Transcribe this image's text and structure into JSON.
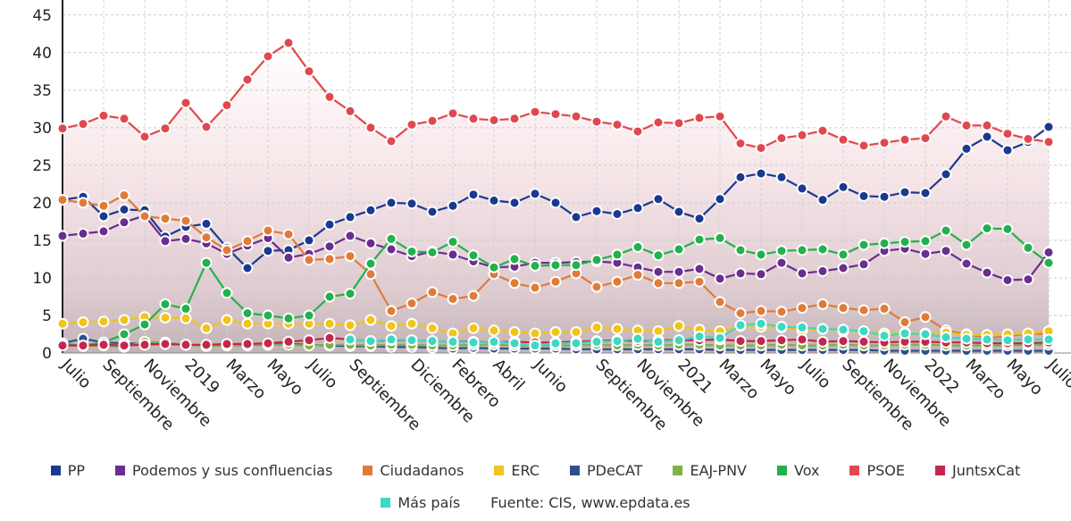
{
  "chart_data": {
    "type": "line",
    "title": "",
    "xlabel": "",
    "ylabel": "",
    "ylim": [
      0,
      47
    ],
    "yticks": [
      0,
      5,
      10,
      15,
      20,
      25,
      30,
      35,
      40,
      45
    ],
    "grid": true,
    "legend_position": "bottom",
    "x_tick_labels": [
      "Julio",
      "Septiembre",
      "Noviembre",
      "2019",
      "Marzo",
      "Mayo",
      "Julio",
      "Septiembre",
      "Diciembre",
      "Febrero",
      "Abril",
      "Junio",
      "Septiembre",
      "Noviembre",
      "2021",
      "Marzo",
      "Mayo",
      "Julio",
      "Septiembre",
      "Noviembre",
      "2022",
      "Marzo",
      "Mayo",
      "Julio"
    ],
    "x_tick_positions": [
      0,
      2,
      4,
      6,
      8,
      10,
      12,
      14,
      17,
      19,
      21,
      23,
      26,
      28,
      30,
      32,
      34,
      36,
      38,
      40,
      42,
      44,
      46,
      48
    ],
    "n_points": 49,
    "series": [
      {
        "name": "PP",
        "color": "#1a3a8f",
        "values": [
          20.4,
          20.8,
          18.2,
          19.1,
          19.0,
          15.5,
          16.8,
          17.2,
          14.0,
          11.3,
          13.6,
          13.7,
          15.0,
          17.1,
          18.1,
          19.0,
          20.0,
          19.9,
          18.8,
          19.6,
          21.1,
          20.3,
          20.0,
          21.2,
          20.0,
          18.1,
          18.9,
          18.5,
          19.3,
          20.5,
          18.8,
          17.9,
          20.5,
          23.4,
          23.9,
          23.4,
          21.9,
          20.4,
          22.1,
          20.9,
          20.8,
          21.4,
          21.3,
          23.8,
          27.2,
          28.8,
          27.0,
          28.1,
          30.1
        ]
      },
      {
        "name": "Podemos y sus confluencias",
        "color": "#6b2d8f",
        "values": [
          15.6,
          15.9,
          16.2,
          17.4,
          18.3,
          14.9,
          15.2,
          14.6,
          13.2,
          14.3,
          15.3,
          12.7,
          13.2,
          14.2,
          15.6,
          14.6,
          13.8,
          12.9,
          13.5,
          13.1,
          12.2,
          11.4,
          11.5,
          12.0,
          12.0,
          12.1,
          12.2,
          12.0,
          11.4,
          10.8,
          10.8,
          11.2,
          9.9,
          10.6,
          10.5,
          12.0,
          10.6,
          10.9,
          11.3,
          11.8,
          13.6,
          13.9,
          13.2,
          13.6,
          11.9,
          10.7,
          9.7,
          9.8,
          13.4
        ]
      },
      {
        "name": "Ciudadanos",
        "color": "#e07b39",
        "values": [
          20.4,
          20.0,
          19.6,
          21.0,
          18.2,
          17.9,
          17.6,
          15.4,
          13.7,
          14.9,
          16.3,
          15.8,
          12.4,
          12.5,
          12.9,
          10.5,
          5.6,
          6.6,
          8.1,
          7.2,
          7.6,
          10.5,
          9.3,
          8.7,
          9.5,
          10.6,
          8.8,
          9.5,
          10.4,
          9.3,
          9.3,
          9.5,
          6.8,
          5.3,
          5.6,
          5.5,
          6.0,
          6.5,
          6.0,
          5.7,
          5.9,
          4.1,
          4.8,
          3.0,
          2.5,
          2.0,
          2.2,
          2.6,
          2.5
        ]
      },
      {
        "name": "ERC",
        "color": "#f0c419",
        "values": [
          3.9,
          4.1,
          4.2,
          4.4,
          4.8,
          4.7,
          4.6,
          3.3,
          4.4,
          3.9,
          3.9,
          3.9,
          3.9,
          3.9,
          3.7,
          4.4,
          3.6,
          3.9,
          3.3,
          2.6,
          3.3,
          3.0,
          2.8,
          2.6,
          2.8,
          2.8,
          3.4,
          3.2,
          3.0,
          2.9,
          3.6,
          3.1,
          2.9,
          3.6,
          3.5,
          3.4,
          3.0,
          3.2,
          2.9,
          2.9,
          2.6,
          2.7,
          2.6,
          2.7,
          2.4,
          2.4,
          2.5,
          2.6,
          2.9
        ]
      },
      {
        "name": "PDeCAT",
        "color": "#2e4f8f",
        "values": [
          1.3,
          1.9,
          1.4,
          1.3,
          1.2,
          1.2,
          1.1,
          1.0,
          1.2,
          1.1,
          1.1,
          1.2,
          1.1,
          1.0,
          0.9,
          0.9,
          0.8,
          0.8,
          0.7,
          0.6,
          0.7,
          0.6,
          0.6,
          0.6,
          0.6,
          0.5,
          0.5,
          0.5,
          0.5,
          0.5,
          0.5,
          0.5,
          0.4,
          0.4,
          0.4,
          0.4,
          0.4,
          0.4,
          0.4,
          0.4,
          0.3,
          0.3,
          0.3,
          0.3,
          0.3,
          0.3,
          0.3,
          0.3,
          0.3
        ]
      },
      {
        "name": "EAJ-PNV",
        "color": "#7cb342",
        "values": [
          1.2,
          0.9,
          1.0,
          0.8,
          1.5,
          1.4,
          1.1,
          0.9,
          1.0,
          1.0,
          1.1,
          1.1,
          1.0,
          1.1,
          1.1,
          1.0,
          1.1,
          1.1,
          1.0,
          1.0,
          1.1,
          1.1,
          1.0,
          1.0,
          1.0,
          1.0,
          1.1,
          1.0,
          1.1,
          1.0,
          1.1,
          1.1,
          1.0,
          1.0,
          1.0,
          1.1,
          1.0,
          1.0,
          1.1,
          1.0,
          1.0,
          1.1,
          1.1,
          1.0,
          1.0,
          1.0,
          1.0,
          1.1,
          1.1
        ]
      },
      {
        "name": "Vox",
        "color": "#22b14c",
        "values": [
          1.2,
          1.0,
          1.4,
          2.5,
          3.8,
          6.5,
          5.9,
          12.0,
          8.0,
          5.3,
          5.0,
          4.6,
          5.0,
          7.5,
          7.9,
          11.9,
          15.2,
          13.5,
          13.4,
          14.8,
          13.0,
          11.4,
          12.5,
          11.6,
          11.7,
          11.7,
          12.4,
          13.1,
          14.1,
          13.0,
          13.8,
          15.1,
          15.3,
          13.7,
          13.1,
          13.6,
          13.7,
          13.8,
          13.1,
          14.4,
          14.6,
          14.8,
          14.9,
          16.3,
          14.4,
          16.6,
          16.5,
          14.0,
          12.0
        ]
      },
      {
        "name": "PSOE",
        "color": "#e0484f",
        "values": [
          29.9,
          30.5,
          31.6,
          31.2,
          28.8,
          29.9,
          33.3,
          30.1,
          33.0,
          36.4,
          39.5,
          41.3,
          37.5,
          34.1,
          32.2,
          30.0,
          28.2,
          30.4,
          30.9,
          31.9,
          31.2,
          31.0,
          31.2,
          32.1,
          31.8,
          31.5,
          30.8,
          30.4,
          29.5,
          30.7,
          30.6,
          31.3,
          31.5,
          27.9,
          27.3,
          28.6,
          29.0,
          29.6,
          28.4,
          27.6,
          28.0,
          28.4,
          28.6,
          31.5,
          30.3,
          30.3,
          29.2,
          28.5,
          28.1
        ]
      },
      {
        "name": "JuntsxCat",
        "color": "#c4264e",
        "values": [
          1.0,
          1.0,
          1.1,
          1.0,
          1.1,
          1.2,
          1.1,
          1.1,
          1.2,
          1.2,
          1.3,
          1.5,
          1.7,
          2.0,
          1.8,
          1.6,
          1.7,
          1.7,
          1.6,
          1.5,
          1.5,
          1.4,
          1.5,
          1.4,
          1.4,
          1.5,
          1.6,
          1.7,
          1.6,
          1.7,
          1.7,
          1.7,
          1.8,
          1.6,
          1.6,
          1.7,
          1.8,
          1.5,
          1.6,
          1.5,
          1.4,
          1.5,
          1.5,
          1.4,
          1.4,
          1.3,
          1.3,
          1.3,
          1.4
        ]
      },
      {
        "name": "Más país",
        "color": "#3dd8c4",
        "values": [
          null,
          null,
          null,
          null,
          null,
          null,
          null,
          null,
          null,
          null,
          null,
          null,
          null,
          null,
          1.8,
          1.6,
          1.8,
          1.7,
          1.6,
          1.5,
          1.4,
          1.5,
          1.3,
          1.0,
          1.3,
          1.3,
          1.5,
          1.6,
          1.9,
          1.5,
          1.7,
          2.2,
          2.0,
          3.7,
          3.9,
          3.5,
          3.4,
          3.2,
          3.1,
          2.9,
          2.3,
          2.6,
          2.5,
          2.1,
          1.9,
          1.8,
          1.7,
          1.8,
          1.8
        ]
      }
    ]
  },
  "source": {
    "label": "Fuente: CIS,",
    "url": "www.epdata.es"
  }
}
